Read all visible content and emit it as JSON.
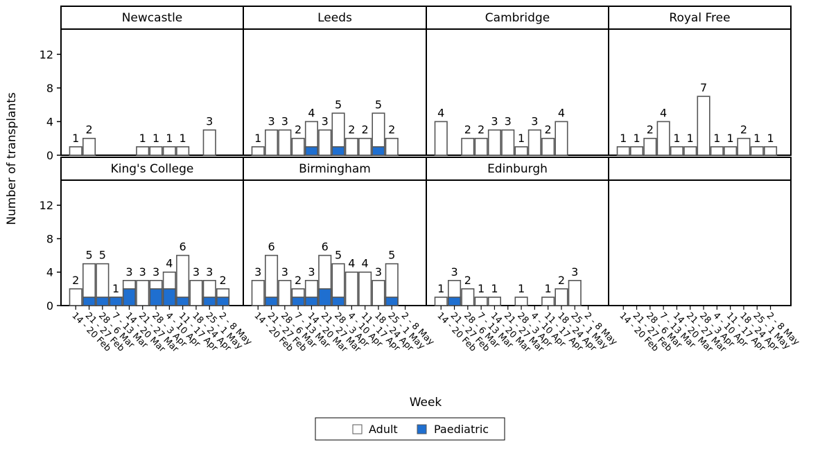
{
  "chart_data": {
    "type": "bar",
    "stacked": true,
    "layout": "panel-grid 2x4",
    "xlabel": "Week",
    "ylabel": "Number of transplants",
    "ylim": [
      0,
      15
    ],
    "yticks": [
      0,
      4,
      8,
      12
    ],
    "grid": false,
    "legend_placement": "bottom-center",
    "colors": {
      "Adult": "#ffffff",
      "Paediatric": "#1f6fd0",
      "bar_outline": "#555555"
    },
    "categories": [
      "14 - 20 Feb",
      "21 - 27 Feb",
      "28 - 6 Mar",
      "7 - 13 Mar",
      "14 - 20 Mar",
      "21 - 27 Mar",
      "28 - 3 Apr",
      "4 - 10 Apr",
      "11 - 17 Apr",
      "18 - 24 Apr",
      "25 - 1 May",
      "2 - 8 May"
    ],
    "legend": [
      {
        "name": "Adult",
        "color": "#ffffff"
      },
      {
        "name": "Paediatric",
        "color": "#1f6fd0"
      }
    ],
    "panels": [
      {
        "title": "Newcastle",
        "totals": [
          1,
          2,
          0,
          0,
          0,
          1,
          1,
          1,
          1,
          0,
          3,
          0
        ],
        "paediatric": [
          0,
          0,
          0,
          0,
          0,
          0,
          0,
          0,
          0,
          0,
          0,
          0
        ]
      },
      {
        "title": "Leeds",
        "totals": [
          1,
          3,
          3,
          2,
          4,
          3,
          5,
          2,
          2,
          5,
          2,
          0
        ],
        "paediatric": [
          0,
          0,
          0,
          0,
          1,
          0,
          1,
          0,
          0,
          1,
          0,
          0
        ]
      },
      {
        "title": "Cambridge",
        "totals": [
          4,
          0,
          2,
          2,
          3,
          3,
          1,
          3,
          2,
          4,
          0,
          0
        ],
        "paediatric": [
          0,
          0,
          0,
          0,
          0,
          0,
          0,
          0,
          0,
          0,
          0,
          0
        ]
      },
      {
        "title": "Royal Free",
        "totals": [
          1,
          1,
          2,
          4,
          1,
          1,
          7,
          1,
          1,
          2,
          1,
          1
        ],
        "paediatric": [
          0,
          0,
          0,
          0,
          0,
          0,
          0,
          0,
          0,
          0,
          0,
          0
        ]
      },
      {
        "title": "King's College",
        "totals": [
          2,
          5,
          5,
          1,
          3,
          3,
          3,
          4,
          6,
          3,
          3,
          2
        ],
        "paediatric": [
          0,
          1,
          1,
          1,
          2,
          0,
          2,
          2,
          1,
          0,
          1,
          1
        ]
      },
      {
        "title": "Birmingham",
        "totals": [
          3,
          6,
          3,
          2,
          3,
          6,
          5,
          4,
          4,
          3,
          5,
          0
        ],
        "paediatric": [
          0,
          1,
          0,
          1,
          1,
          2,
          1,
          0,
          0,
          0,
          1,
          0
        ]
      },
      {
        "title": "Edinburgh",
        "totals": [
          1,
          3,
          2,
          1,
          1,
          0,
          1,
          0,
          1,
          2,
          3,
          0
        ],
        "paediatric": [
          0,
          1,
          0,
          0,
          0,
          0,
          0,
          0,
          0,
          0,
          0,
          0
        ]
      },
      {
        "title": "",
        "totals": [
          0,
          0,
          0,
          0,
          0,
          0,
          0,
          0,
          0,
          0,
          0,
          0
        ],
        "paediatric": [
          0,
          0,
          0,
          0,
          0,
          0,
          0,
          0,
          0,
          0,
          0,
          0
        ]
      }
    ]
  }
}
